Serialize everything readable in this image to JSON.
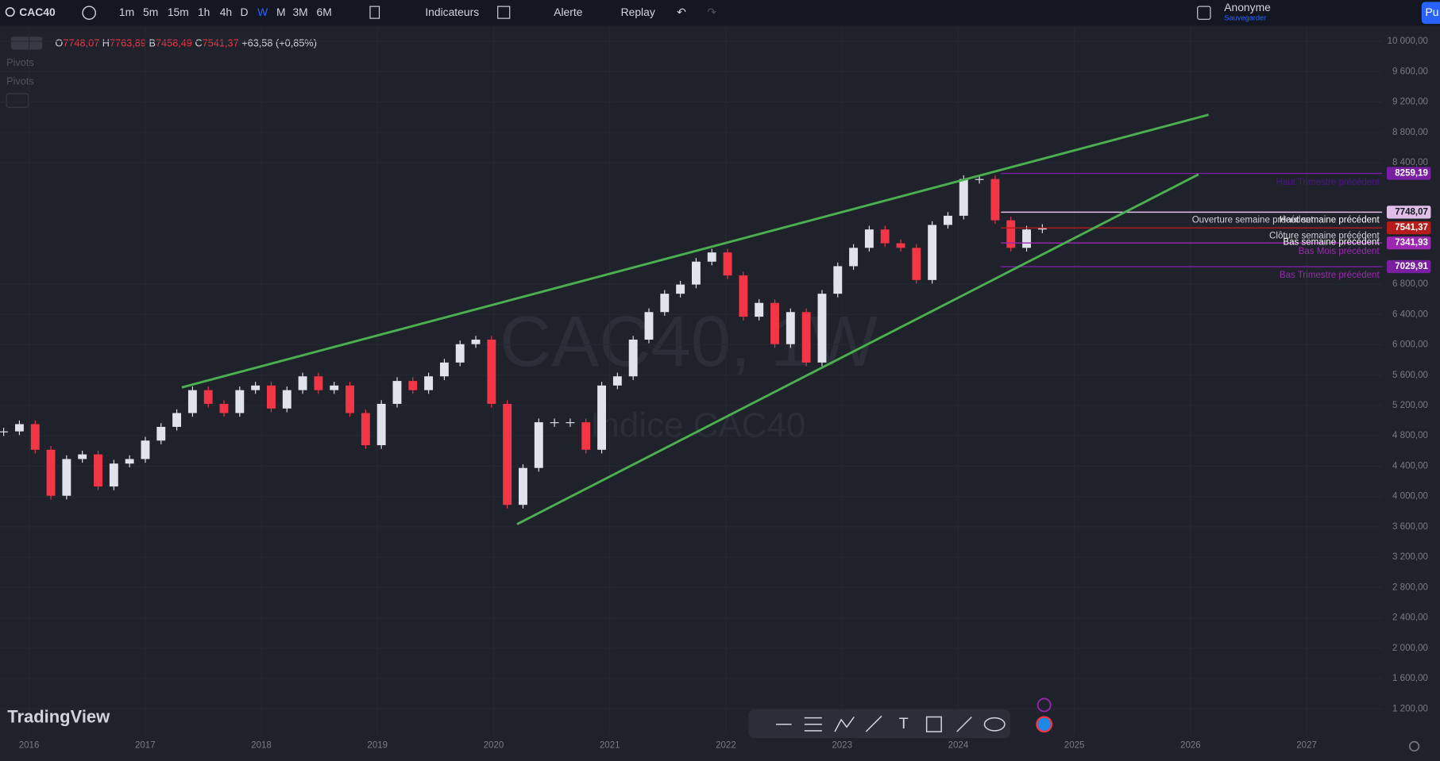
{
  "toolbar": {
    "symbol": "CAC40",
    "intervals": [
      "1m",
      "5m",
      "15m",
      "1h",
      "4h",
      "D",
      "W",
      "M",
      "3M",
      "6M"
    ],
    "indicators": "Indicateurs",
    "alert": "Alerte",
    "replay": "Replay",
    "user": "Anonyme",
    "save": "Sauvegarder",
    "publish": "Pu"
  },
  "legend": {
    "open_label": "O",
    "open": "7748,07",
    "high_label": "H",
    "high": "7763,89",
    "low_label": "B",
    "low": "7458,49",
    "close_label": "C",
    "close": "7541,37",
    "change": "+63,58 (+0,85%)"
  },
  "indicators": [
    "Pivots",
    "Pivots"
  ],
  "watermark": {
    "title": "CAC40, 1W",
    "subtitle": "Indice CAC40"
  },
  "brand": "TradingView",
  "chart": {
    "closes": [
      4858,
      4954,
      4616,
      4010,
      4494,
      4555,
      4132,
      4434,
      4494,
      4737,
      4918,
      5100,
      5402,
      5221,
      5100,
      5402,
      5463,
      5160,
      5402,
      5584,
      5402,
      5463,
      5100,
      4676,
      5221,
      5523,
      5402,
      5584,
      5766,
      6008,
      6068,
      5221,
      3890,
      4376,
      4979,
      4979,
      4979,
      4616,
      5463,
      5584,
      6068,
      6431,
      6673,
      6794,
      7096,
      7217,
      6914,
      6370,
      6552,
      6008,
      6431,
      5766,
      6673,
      7036,
      7278,
      7520,
      7338,
      7278,
      6854,
      7580,
      7701,
      8185,
      8185,
      7641,
      7278,
      7520,
      7541
    ],
    "ylim": [
      864,
      10182
    ],
    "yticks": [
      {
        "value": 10000,
        "label": "10 000,00"
      },
      {
        "value": 9600,
        "label": "9 600,00"
      },
      {
        "value": 9200,
        "label": "9 200,00"
      },
      {
        "value": 8800,
        "label": "8 800,00"
      },
      {
        "value": 8400,
        "label": "8 400,00"
      },
      {
        "value": 6800,
        "label": "6 800,00"
      },
      {
        "value": 6400,
        "label": "6 400,00"
      },
      {
        "value": 6000,
        "label": "6 000,00"
      },
      {
        "value": 5600,
        "label": "5 600,00"
      },
      {
        "value": 5200,
        "label": "5 200,00"
      },
      {
        "value": 4800,
        "label": "4 800,00"
      },
      {
        "value": 4400,
        "label": "4 400,00"
      },
      {
        "value": 4000,
        "label": "4 000,00"
      },
      {
        "value": 3600,
        "label": "3 600,00"
      },
      {
        "value": 3200,
        "label": "3 200,00"
      },
      {
        "value": 2800,
        "label": "2 800,00"
      },
      {
        "value": 2400,
        "label": "2 400,00"
      },
      {
        "value": 2000,
        "label": "2 000,00"
      },
      {
        "value": 1600,
        "label": "1 600,00"
      },
      {
        "value": 1200,
        "label": "1 200,00"
      }
    ],
    "xlim": [
      2015.75,
      2027.65
    ],
    "xticks": [
      2016,
      2017,
      2018,
      2019,
      2020,
      2021,
      2022,
      2023,
      2024,
      2025,
      2026,
      2027
    ],
    "levels": [
      {
        "value": 8259.19,
        "label": "8259,19",
        "color": "#7b1fa2"
      },
      {
        "value": 7748.07,
        "label": "7748,07",
        "color": "#e1bee7"
      },
      {
        "value": 7541.37,
        "label": "7541,37",
        "color": "#b71c1c"
      },
      {
        "value": 7341.93,
        "label": "7341,93",
        "color": "#9c27b0"
      },
      {
        "value": 7029.91,
        "label": "7029,91",
        "color": "#7b1fa2"
      }
    ],
    "level_names": [
      "Haut Trimestre précédent",
      "Haut semaine précédent",
      "Ouverture semaine précédent",
      "Clôture semaine précédent",
      "Bas semaine précédent",
      "Bas Mois précédent",
      "Bas Trimestre précédent"
    ]
  }
}
